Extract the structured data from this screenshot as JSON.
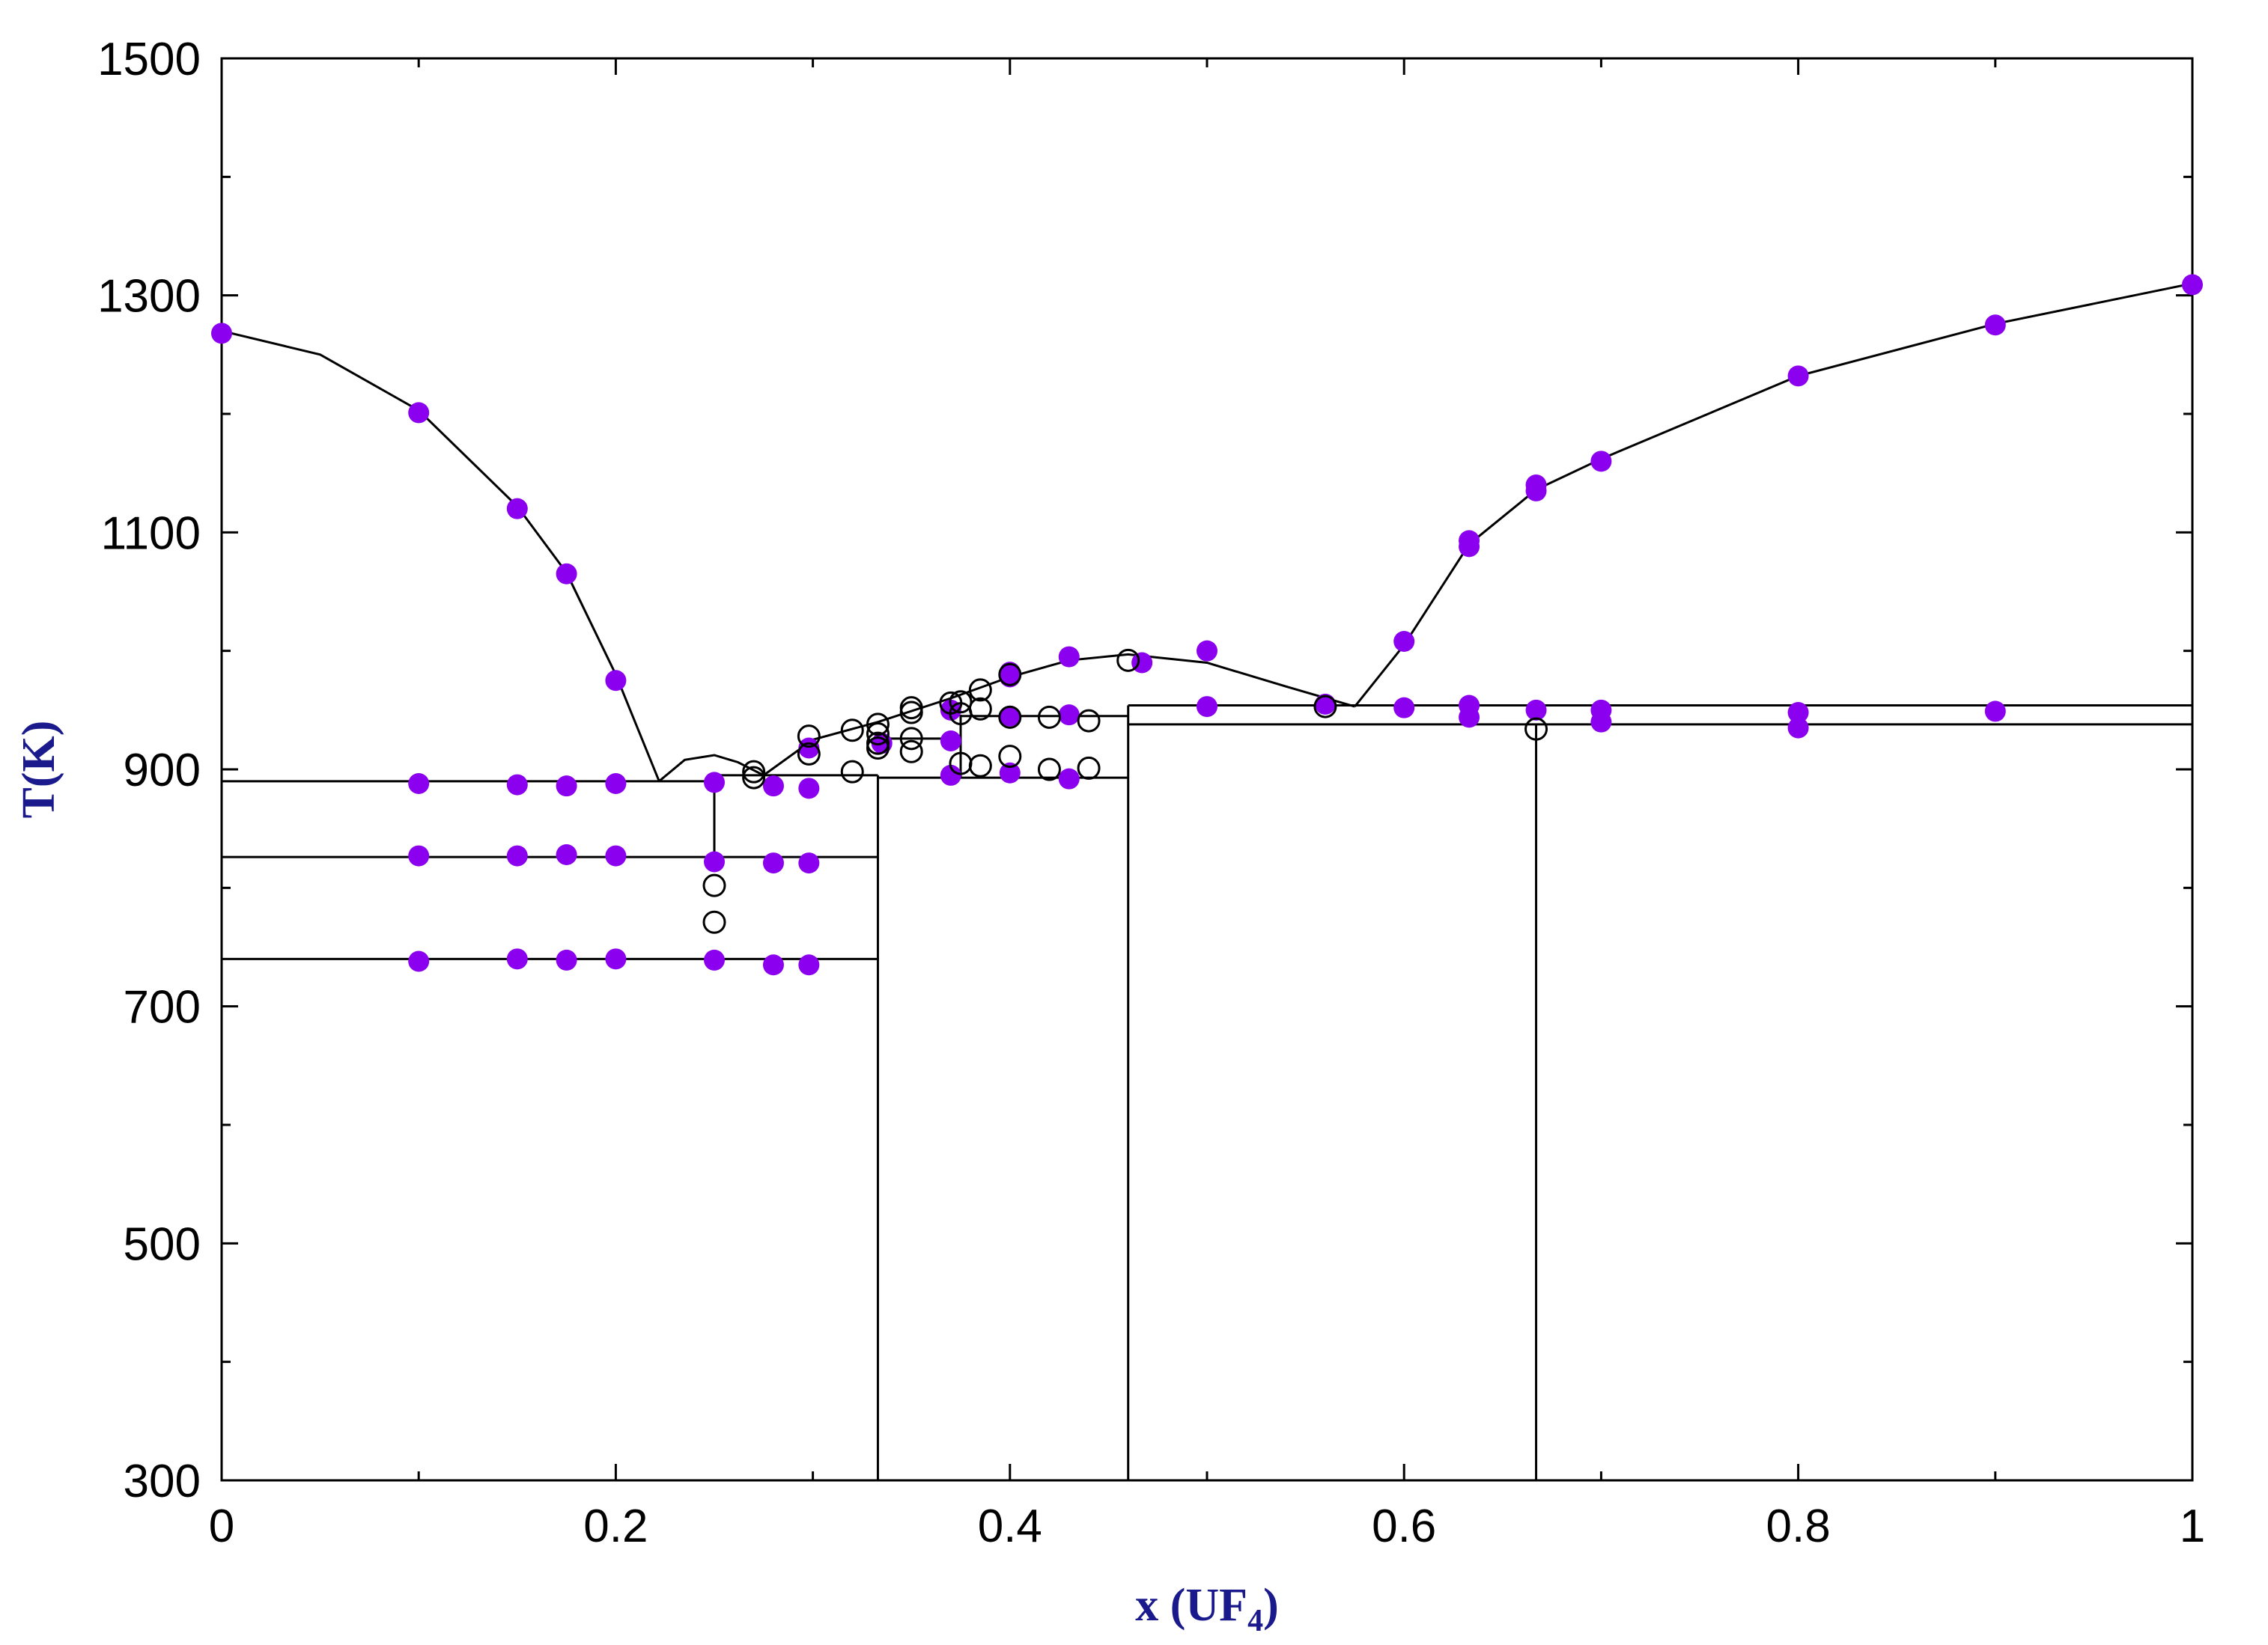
{
  "chart_data": {
    "type": "scatter",
    "xlabel": "x (UF",
    "xlabel_subscript": "4",
    "xlabel_suffix": ")",
    "ylabel": "T(K)",
    "xlim": [
      0,
      1
    ],
    "ylim": [
      300,
      1500
    ],
    "x_ticks": [
      {
        "value": 0,
        "label": "0"
      },
      {
        "value": 0.2,
        "label": "0.2"
      },
      {
        "value": 0.4,
        "label": "0.4"
      },
      {
        "value": 0.6,
        "label": "0.6"
      },
      {
        "value": 0.8,
        "label": "0.8"
      },
      {
        "value": 1,
        "label": "1"
      }
    ],
    "y_ticks": [
      {
        "value": 300,
        "label": "300"
      },
      {
        "value": 500,
        "label": "500"
      },
      {
        "value": 700,
        "label": "700"
      },
      {
        "value": 900,
        "label": "900"
      },
      {
        "value": 1100,
        "label": "1100"
      },
      {
        "value": 1300,
        "label": "1300"
      },
      {
        "value": 1500,
        "label": "1500"
      }
    ],
    "grid": false,
    "colors": {
      "filled_marker": "#8b00ee",
      "open_marker": "#000000",
      "line": "#000000",
      "axis_title": "#1a1a8c"
    },
    "series": [
      {
        "marker": "filled",
        "points": [
          [
            0,
            1268
          ],
          [
            0.1,
            1201
          ],
          [
            0.15,
            1120
          ],
          [
            0.175,
            1065
          ],
          [
            0.2,
            975
          ],
          [
            0.1,
            888
          ],
          [
            0.15,
            887
          ],
          [
            0.175,
            886
          ],
          [
            0.2,
            888
          ],
          [
            0.25,
            889
          ],
          [
            0.28,
            886
          ],
          [
            0.298,
            884
          ],
          [
            0.1,
            827
          ],
          [
            0.15,
            827
          ],
          [
            0.175,
            828
          ],
          [
            0.2,
            827
          ],
          [
            0.25,
            822
          ],
          [
            0.28,
            821
          ],
          [
            0.298,
            821
          ],
          [
            0.1,
            738
          ],
          [
            0.15,
            740
          ],
          [
            0.175,
            739
          ],
          [
            0.2,
            740
          ],
          [
            0.25,
            739
          ],
          [
            0.28,
            735
          ],
          [
            0.298,
            735
          ],
          [
            0.298,
            918
          ],
          [
            0.335,
            922
          ],
          [
            0.37,
            924
          ],
          [
            0.37,
            895
          ],
          [
            0.4,
            897
          ],
          [
            0.43,
            892
          ],
          [
            0.37,
            950
          ],
          [
            0.4,
            945
          ],
          [
            0.43,
            946
          ],
          [
            0.4,
            982
          ],
          [
            0.4,
            978
          ],
          [
            0.43,
            995
          ],
          [
            0.467,
            990
          ],
          [
            0.5,
            1000
          ],
          [
            0.5,
            953
          ],
          [
            0.56,
            955
          ],
          [
            0.6,
            952
          ],
          [
            0.6,
            1008
          ],
          [
            0.633,
            1093
          ],
          [
            0.633,
            1088
          ],
          [
            0.633,
            954
          ],
          [
            0.633,
            944
          ],
          [
            0.667,
            1140
          ],
          [
            0.667,
            1135
          ],
          [
            0.667,
            950
          ],
          [
            0.7,
            1160
          ],
          [
            0.7,
            950
          ],
          [
            0.7,
            940
          ],
          [
            0.8,
            1232
          ],
          [
            0.8,
            948
          ],
          [
            0.8,
            935
          ],
          [
            0.9,
            1275
          ],
          [
            0.9,
            949
          ],
          [
            1,
            1309
          ]
        ]
      },
      {
        "marker": "open",
        "points": [
          [
            0.25,
            802
          ],
          [
            0.25,
            771
          ],
          [
            0.27,
            898
          ],
          [
            0.27,
            893
          ],
          [
            0.298,
            928
          ],
          [
            0.298,
            913
          ],
          [
            0.32,
            933
          ],
          [
            0.32,
            898
          ],
          [
            0.333,
            938
          ],
          [
            0.333,
            930
          ],
          [
            0.333,
            922
          ],
          [
            0.333,
            918
          ],
          [
            0.35,
            952
          ],
          [
            0.35,
            948
          ],
          [
            0.35,
            926
          ],
          [
            0.35,
            915
          ],
          [
            0.37,
            956
          ],
          [
            0.375,
            957
          ],
          [
            0.375,
            947
          ],
          [
            0.375,
            905
          ],
          [
            0.385,
            967
          ],
          [
            0.385,
            951
          ],
          [
            0.385,
            903
          ],
          [
            0.4,
            980
          ],
          [
            0.4,
            944
          ],
          [
            0.4,
            911
          ],
          [
            0.42,
            944
          ],
          [
            0.42,
            900
          ],
          [
            0.44,
            941
          ],
          [
            0.44,
            901
          ],
          [
            0.46,
            992
          ],
          [
            0.56,
            953
          ],
          [
            0.667,
            934
          ]
        ]
      }
    ],
    "curves": [
      [
        [
          0,
          1270
        ],
        [
          0.05,
          1250
        ],
        [
          0.1,
          1203
        ],
        [
          0.15,
          1122
        ],
        [
          0.175,
          1066
        ],
        [
          0.2,
          980
        ],
        [
          0.222,
          890
        ]
      ],
      [
        [
          0.222,
          890
        ],
        [
          0.235,
          908
        ],
        [
          0.25,
          912
        ],
        [
          0.262,
          906
        ],
        [
          0.275,
          895
        ]
      ],
      [
        [
          0.275,
          895
        ],
        [
          0.3,
          925
        ],
        [
          0.333,
          940
        ],
        [
          0.37,
          960
        ],
        [
          0.4,
          978
        ],
        [
          0.43,
          992
        ],
        [
          0.46,
          997
        ],
        [
          0.5,
          990
        ],
        [
          0.54,
          970
        ],
        [
          0.575,
          953
        ]
      ],
      [
        [
          0.575,
          953
        ],
        [
          0.6,
          1005
        ],
        [
          0.633,
          1090
        ],
        [
          0.667,
          1136
        ],
        [
          0.7,
          1162
        ],
        [
          0.8,
          1232
        ],
        [
          0.9,
          1276
        ],
        [
          1,
          1310
        ]
      ]
    ],
    "hlines": [
      [
        0,
        0.25,
        890
      ],
      [
        0,
        0.333,
        826
      ],
      [
        0,
        0.333,
        740
      ],
      [
        0.25,
        0.333,
        895
      ],
      [
        0.333,
        0.46,
        893
      ],
      [
        0.333,
        0.375,
        926
      ],
      [
        0.375,
        0.46,
        945
      ],
      [
        0.46,
        1,
        954
      ],
      [
        0.46,
        1,
        938
      ]
    ],
    "vlines": [
      [
        0.25,
        826,
        895
      ],
      [
        0.333,
        300,
        895
      ],
      [
        0.375,
        893,
        946
      ],
      [
        0.46,
        300,
        954
      ],
      [
        0.667,
        300,
        938
      ]
    ]
  }
}
